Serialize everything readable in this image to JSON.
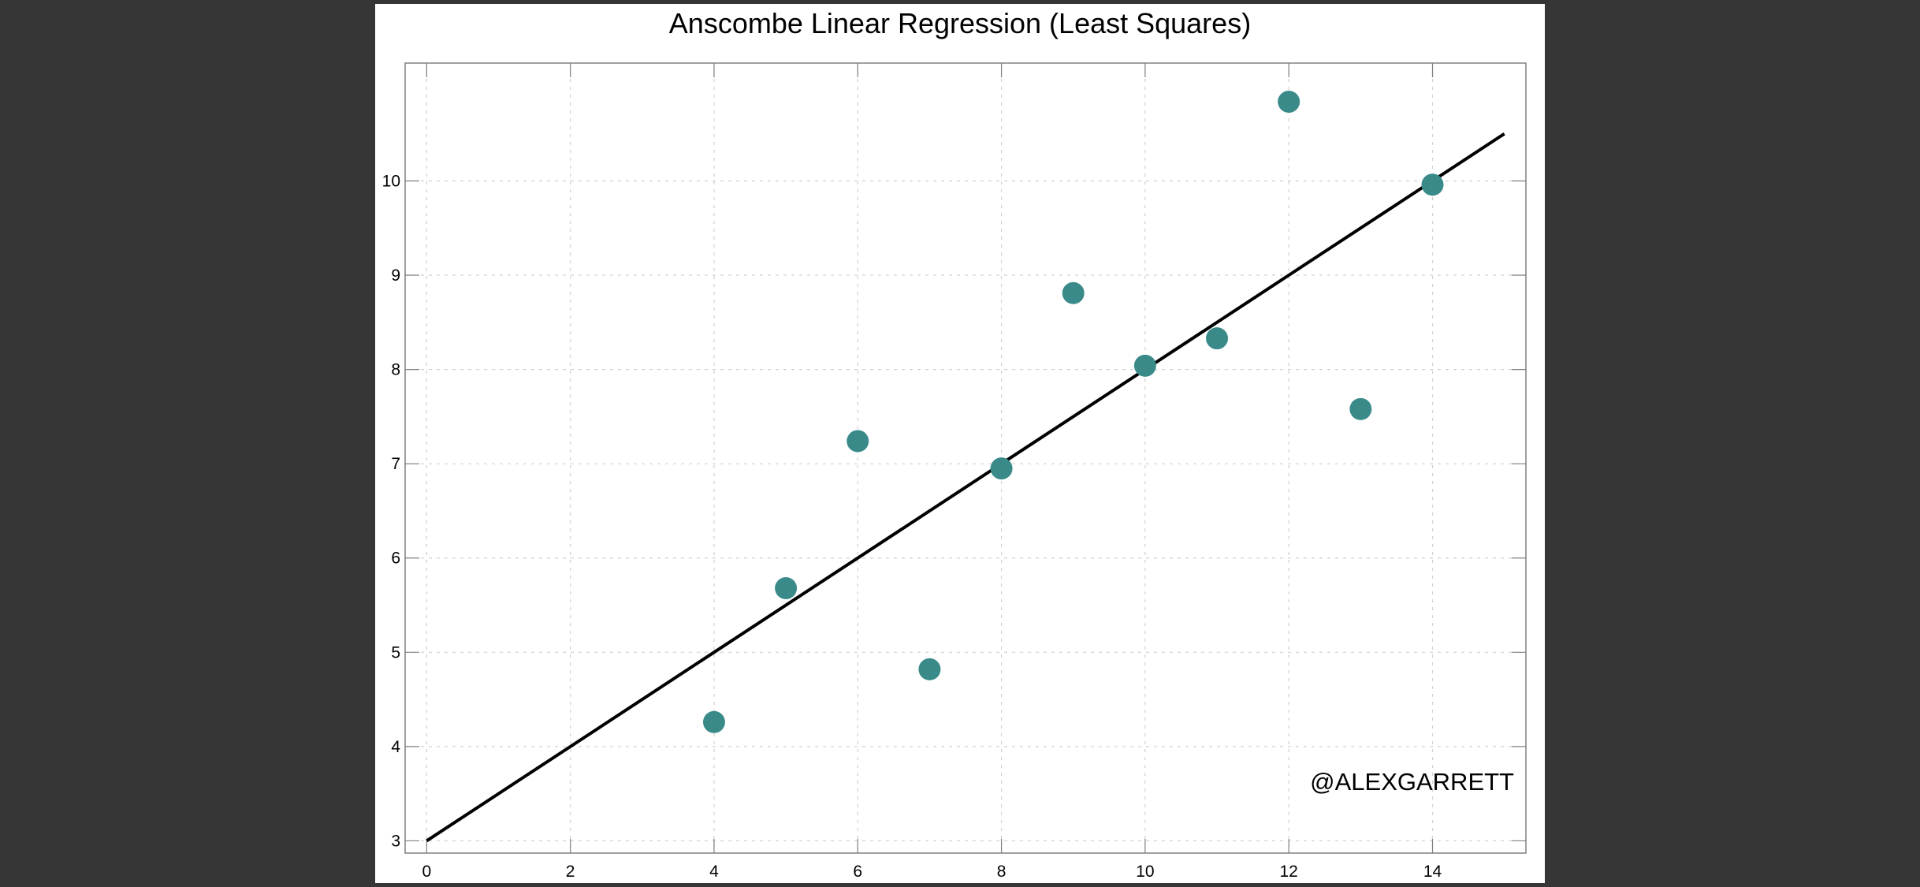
{
  "chart_data": {
    "type": "scatter",
    "title": "Anscombe Linear Regression (Least Squares)",
    "xlabel": "",
    "ylabel": "",
    "xlim": [
      -0.3,
      15.3
    ],
    "ylim": [
      2.87,
      11.25
    ],
    "xticks": [
      0,
      2,
      4,
      6,
      8,
      10,
      12,
      14
    ],
    "yticks": [
      3,
      4,
      5,
      6,
      7,
      8,
      9,
      10
    ],
    "grid": true,
    "points": [
      {
        "x": 4,
        "y": 4.26
      },
      {
        "x": 5,
        "y": 5.68
      },
      {
        "x": 6,
        "y": 7.24
      },
      {
        "x": 7,
        "y": 4.82
      },
      {
        "x": 8,
        "y": 6.95
      },
      {
        "x": 9,
        "y": 8.81
      },
      {
        "x": 10,
        "y": 8.04
      },
      {
        "x": 11,
        "y": 8.33
      },
      {
        "x": 12,
        "y": 10.84
      },
      {
        "x": 13,
        "y": 7.58
      },
      {
        "x": 14,
        "y": 9.96
      }
    ],
    "fit_line": {
      "x": [
        0,
        15
      ],
      "y": [
        3.0,
        10.5
      ]
    },
    "annotation": "@ALEXGARRETT",
    "colors": {
      "points": "#3a8a8a",
      "line": "#000000",
      "grid": "#d0d0d0",
      "background": "#363636"
    }
  }
}
